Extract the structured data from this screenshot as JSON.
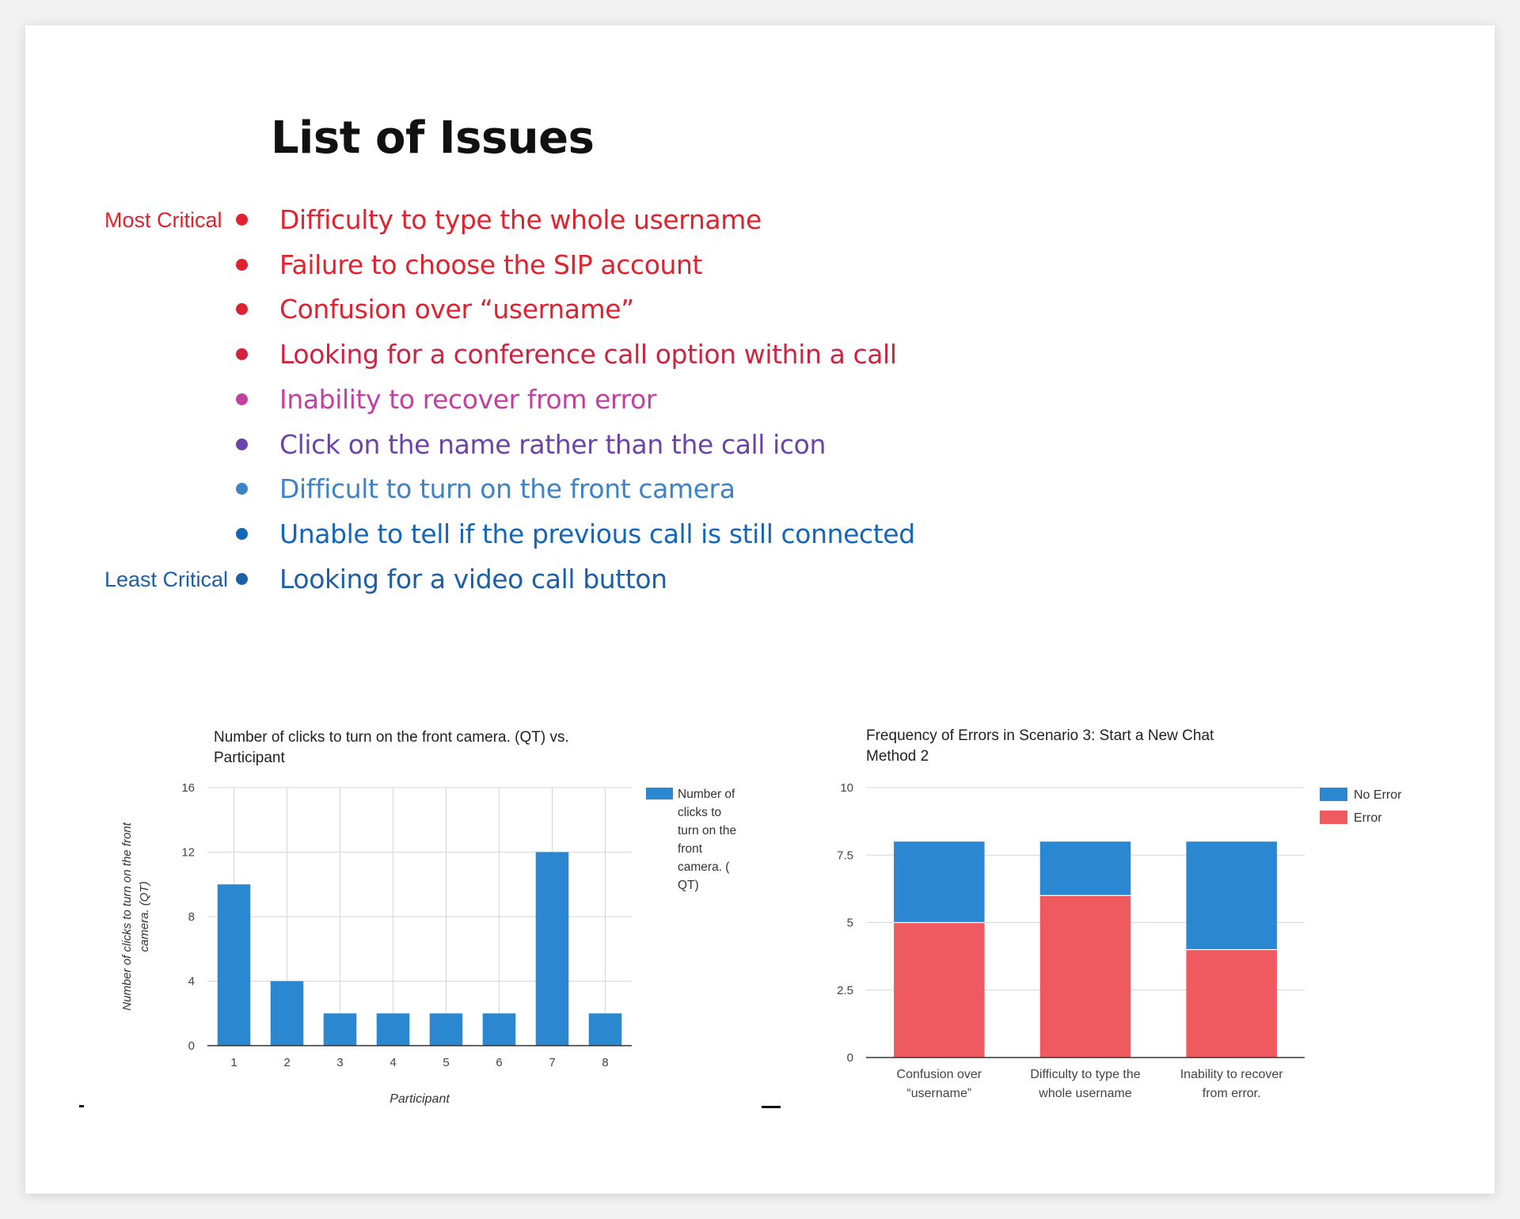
{
  "page": {
    "title": "List of Issues"
  },
  "issues": [
    {
      "text": "Difficulty to type the whole username",
      "color": "#e0212e",
      "critical_label": "Most Critical",
      "label_color": "#e0212e"
    },
    {
      "text": "Failure to choose the SIP account",
      "color": "#e0212e",
      "critical_label": "",
      "label_color": ""
    },
    {
      "text": "Confusion over “username”",
      "color": "#de2232",
      "critical_label": "",
      "label_color": ""
    },
    {
      "text": "Looking for a conference call option within a call",
      "color": "#cf2340",
      "critical_label": "",
      "label_color": ""
    },
    {
      "text": "Inability to recover from error",
      "color": "#c240a0",
      "critical_label": "",
      "label_color": ""
    },
    {
      "text": "Click on the name rather than the call icon",
      "color": "#6a44a8",
      "critical_label": "",
      "label_color": ""
    },
    {
      "text": "Difficult to turn on the front camera",
      "color": "#3e82c8",
      "critical_label": "",
      "label_color": ""
    },
    {
      "text": "Unable to tell if the previous call is still connected",
      "color": "#1466b8",
      "critical_label": "",
      "label_color": ""
    },
    {
      "text": "Looking for a video call button",
      "color": "#1d5fa6",
      "critical_label": "Least Critical",
      "label_color": "#1d5fa6"
    }
  ],
  "chart_data": [
    {
      "type": "bar",
      "title": "Number of clicks to turn on the front camera. (QT) vs. Participant",
      "title_lines": [
        "Number of clicks to turn on the front camera. (QT) vs.",
        "Participant"
      ],
      "xlabel": "Participant",
      "ylabel_lines": [
        "Number of clicks to turn on the front",
        "camera. (QT)"
      ],
      "categories": [
        "1",
        "2",
        "3",
        "4",
        "5",
        "6",
        "7",
        "8"
      ],
      "series": [
        {
          "name": "Number of clicks to turn on the front camera. ( QT)",
          "color": "#2a87d0",
          "values": [
            10,
            4,
            2,
            2,
            2,
            2,
            12,
            2
          ]
        }
      ],
      "legend_lines": [
        "Number of",
        "clicks to",
        "turn on the",
        "front",
        "camera. (",
        "QT)"
      ],
      "ylim": [
        0,
        16
      ],
      "yticks": [
        "0",
        "4",
        "8",
        "12",
        "16"
      ],
      "grid": true,
      "legend_position": "right"
    },
    {
      "type": "bar",
      "stacked": true,
      "title": "Frequency of Errors in Scenario 3: Start a New Chat Method 2",
      "title_lines": [
        "Frequency of Errors in Scenario 3: Start a New Chat",
        "Method 2"
      ],
      "categories": [
        "Confusion over “username”",
        "Difficulty to type the whole username",
        "Inability to recover from error."
      ],
      "category_lines": [
        [
          "Confusion over",
          "“username”"
        ],
        [
          "Difficulty to type the",
          "whole username"
        ],
        [
          "Inability to recover",
          "from error."
        ]
      ],
      "series": [
        {
          "name": "Error",
          "color": "#ee5a5f",
          "values": [
            5,
            6,
            4
          ]
        },
        {
          "name": "No Error",
          "color": "#2a87d0",
          "values": [
            3,
            2,
            4
          ]
        }
      ],
      "legend_order": [
        "No Error",
        "Error"
      ],
      "ylim": [
        0,
        10
      ],
      "yticks": [
        "0",
        "2.5",
        "5",
        "7.5",
        "10"
      ],
      "grid": true,
      "legend_position": "right"
    }
  ]
}
